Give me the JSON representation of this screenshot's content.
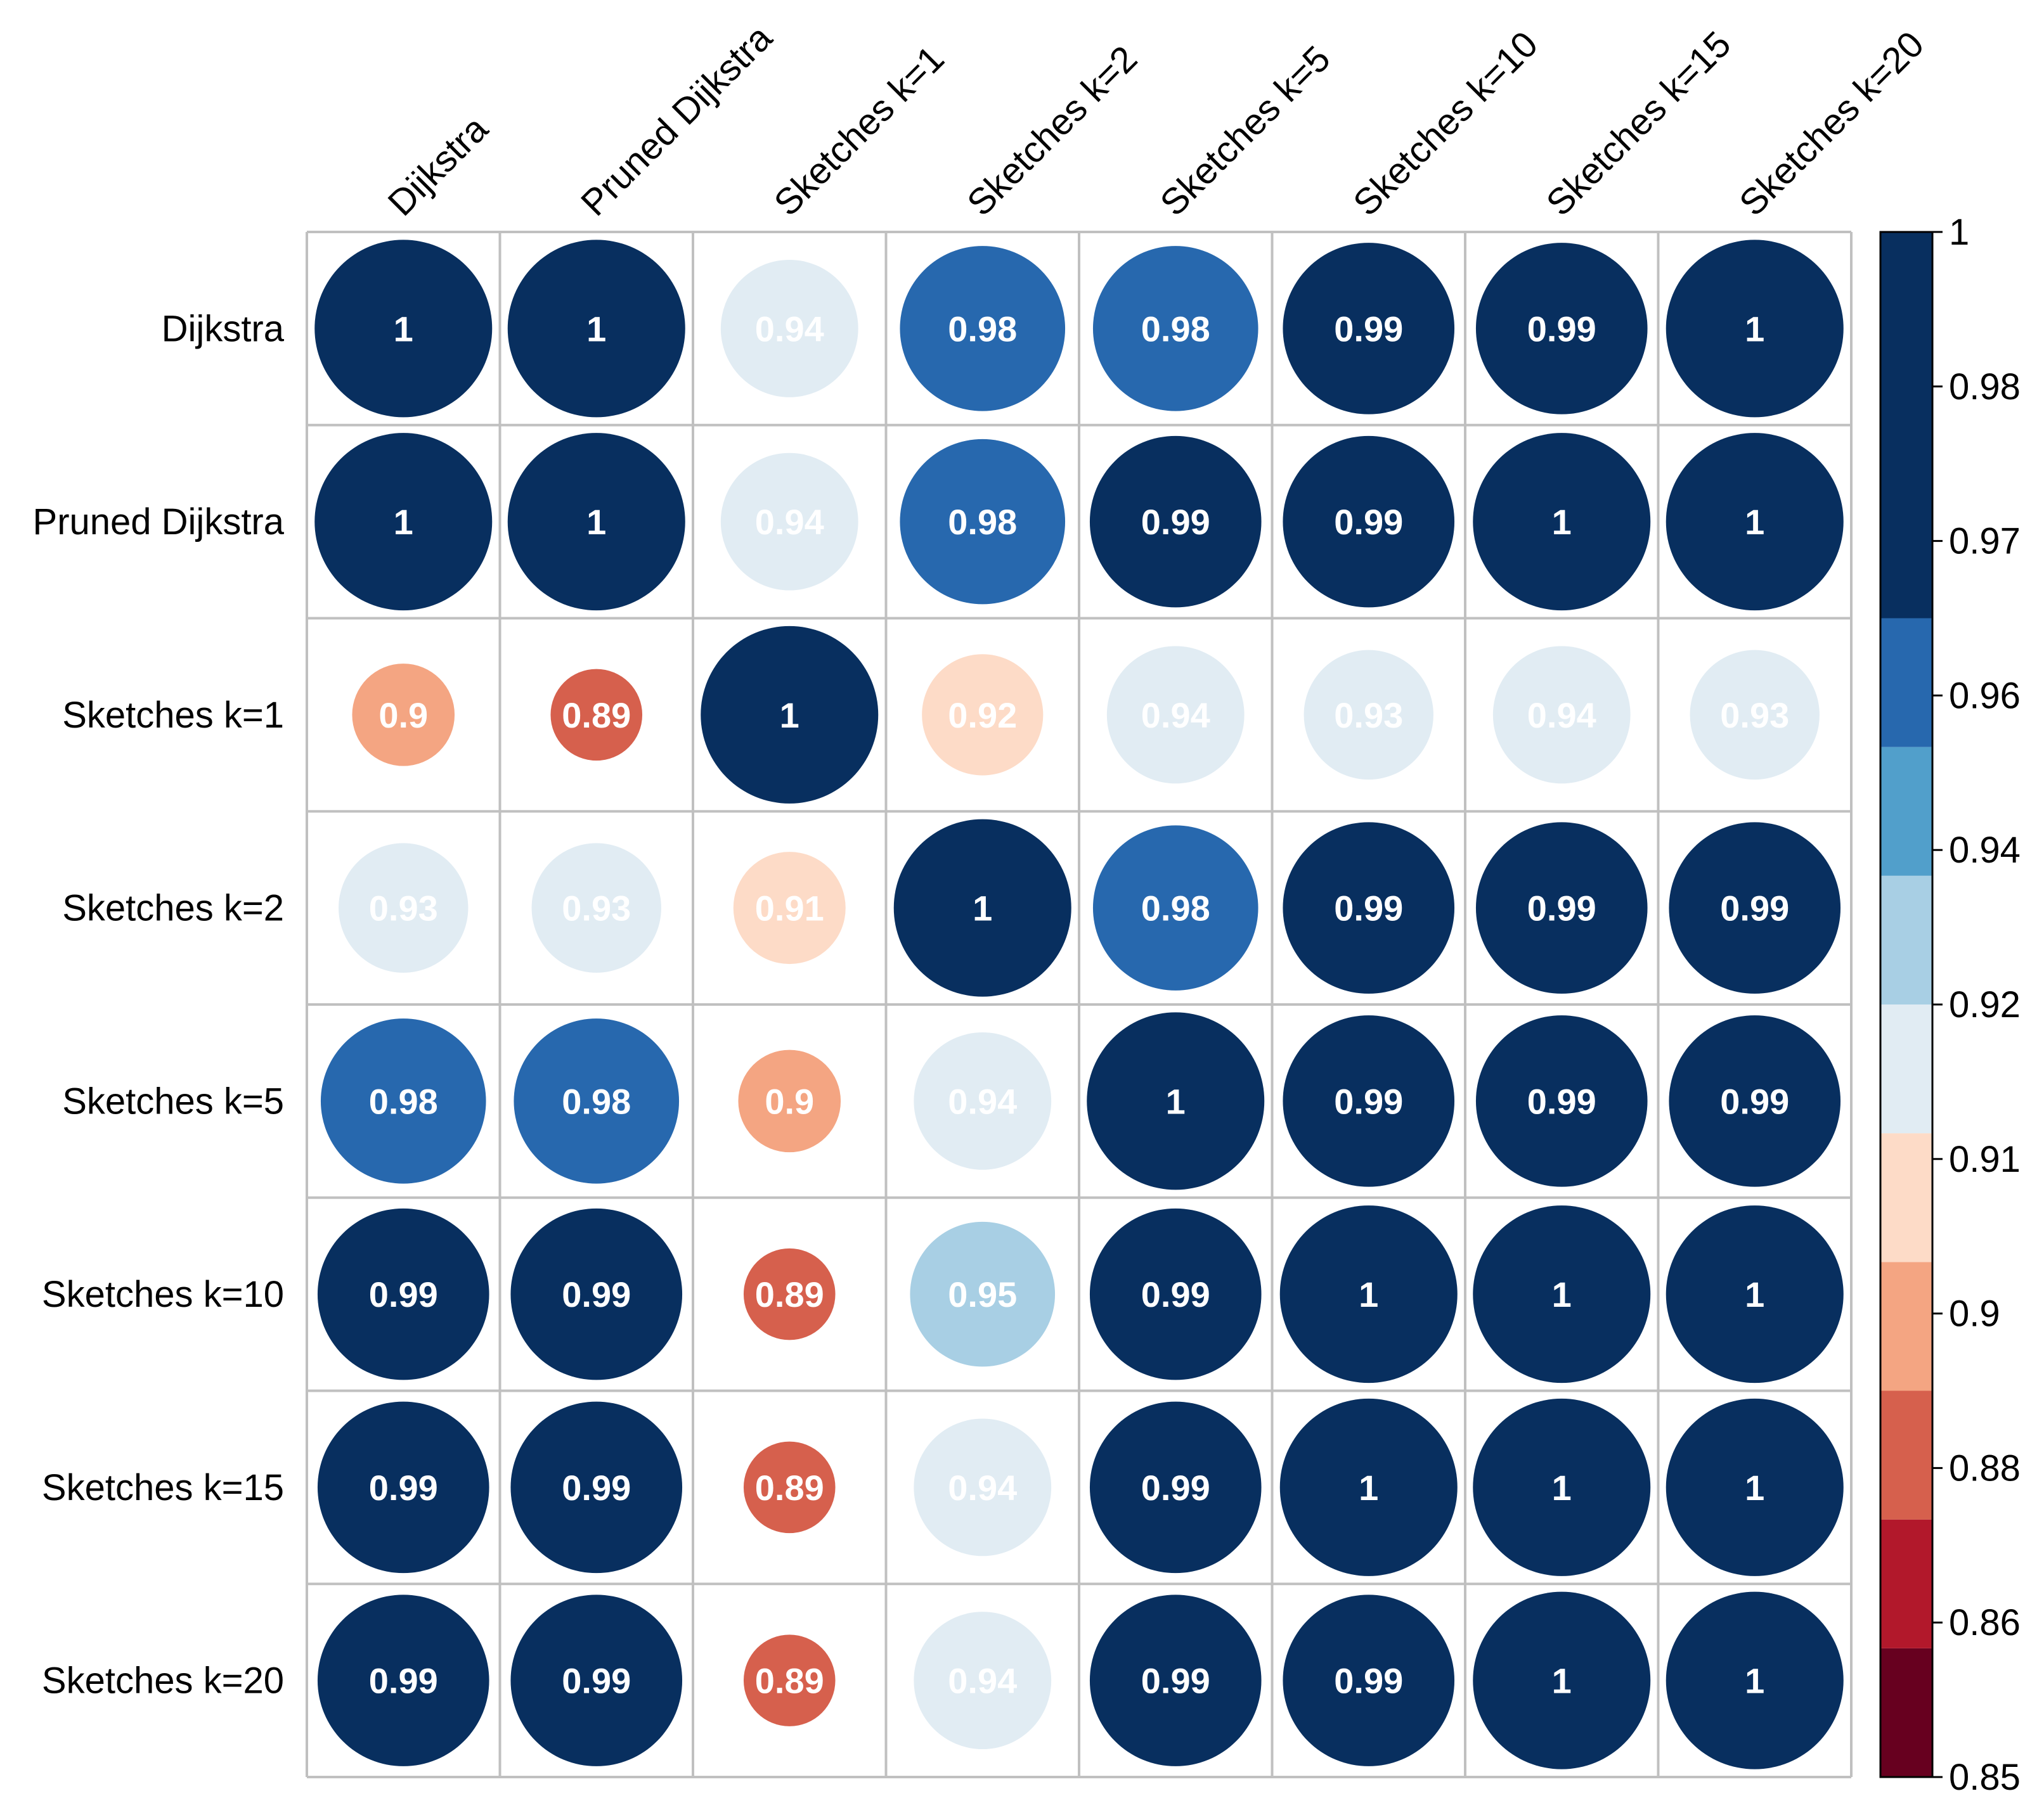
{
  "chart_data": {
    "type": "heatmap",
    "title": "",
    "labels": [
      "Dijkstra",
      "Pruned Dijkstra",
      "Sketches k=1",
      "Sketches k=2",
      "Sketches k=5",
      "Sketches k=10",
      "Sketches k=15",
      "Sketches k=20"
    ],
    "values": [
      [
        1,
        1,
        0.94,
        0.98,
        0.98,
        0.99,
        0.99,
        1
      ],
      [
        1,
        1,
        0.94,
        0.98,
        0.99,
        0.99,
        1,
        1
      ],
      [
        0.9,
        0.89,
        1,
        0.92,
        0.94,
        0.93,
        0.94,
        0.93
      ],
      [
        0.93,
        0.93,
        0.91,
        1,
        0.98,
        0.99,
        0.99,
        0.99
      ],
      [
        0.98,
        0.98,
        0.9,
        0.94,
        1,
        0.99,
        0.99,
        0.99
      ],
      [
        0.99,
        0.99,
        0.89,
        0.95,
        0.99,
        1,
        1,
        1
      ],
      [
        0.99,
        0.99,
        0.89,
        0.94,
        0.99,
        1,
        1,
        1
      ],
      [
        0.99,
        0.99,
        0.89,
        0.94,
        0.99,
        0.99,
        1,
        1
      ]
    ],
    "colorbar": {
      "range": [
        0.85,
        1
      ],
      "tick_labels": [
        "1",
        "0.98",
        "0.97",
        "0.96",
        "0.94",
        "0.92",
        "0.91",
        "0.9",
        "0.88",
        "0.86",
        "0.85"
      ],
      "bins": [
        {
          "from": 0.85,
          "to": 0.8625,
          "color": "#67001f"
        },
        {
          "from": 0.8625,
          "to": 0.875,
          "color": "#b2182b"
        },
        {
          "from": 0.875,
          "to": 0.8875,
          "color": "#d6604d"
        },
        {
          "from": 0.8875,
          "to": 0.9,
          "color": "#f4a582"
        },
        {
          "from": 0.9,
          "to": 0.9125,
          "color": "#fddbc7"
        },
        {
          "from": 0.9125,
          "to": 0.925,
          "color": "#e1ecf3"
        },
        {
          "from": 0.925,
          "to": 0.9375,
          "color": "#a8cfe4"
        },
        {
          "from": 0.9375,
          "to": 0.95,
          "color": "#519fcb"
        },
        {
          "from": 0.95,
          "to": 0.9625,
          "color": "#2768ae"
        },
        {
          "from": 0.9625,
          "to": 1.0,
          "color": "#082f5f"
        }
      ]
    },
    "cell_colors": [
      [
        "#082f5f",
        "#082f5f",
        "#e1ecf3",
        "#2768ae",
        "#2768ae",
        "#082f5f",
        "#082f5f",
        "#082f5f"
      ],
      [
        "#082f5f",
        "#082f5f",
        "#e1ecf3",
        "#2768ae",
        "#082f5f",
        "#082f5f",
        "#082f5f",
        "#082f5f"
      ],
      [
        "#f4a582",
        "#d6604d",
        "#082f5f",
        "#fddbc7",
        "#e1ecf3",
        "#e1ecf3",
        "#e1ecf3",
        "#e1ecf3"
      ],
      [
        "#e1ecf3",
        "#e1ecf3",
        "#fddbc7",
        "#082f5f",
        "#2768ae",
        "#082f5f",
        "#082f5f",
        "#082f5f"
      ],
      [
        "#2768ae",
        "#2768ae",
        "#f4a582",
        "#e1ecf3",
        "#082f5f",
        "#082f5f",
        "#082f5f",
        "#082f5f"
      ],
      [
        "#082f5f",
        "#082f5f",
        "#d6604d",
        "#a8cfe4",
        "#082f5f",
        "#082f5f",
        "#082f5f",
        "#082f5f"
      ],
      [
        "#082f5f",
        "#082f5f",
        "#d6604d",
        "#e1ecf3",
        "#082f5f",
        "#082f5f",
        "#082f5f",
        "#082f5f"
      ],
      [
        "#082f5f",
        "#082f5f",
        "#d6604d",
        "#e1ecf3",
        "#082f5f",
        "#082f5f",
        "#082f5f",
        "#082f5f"
      ]
    ],
    "grid": true,
    "legend": "right colorbar"
  }
}
